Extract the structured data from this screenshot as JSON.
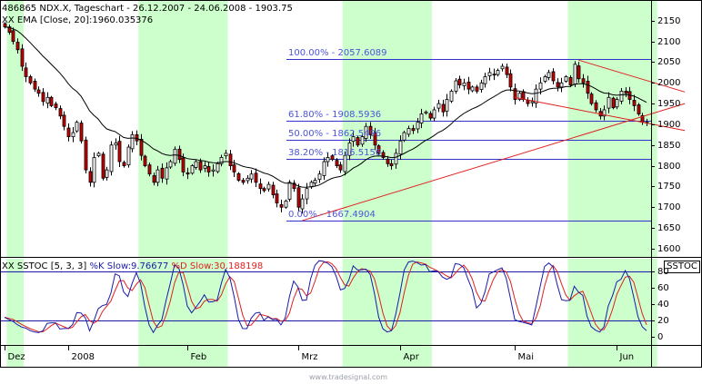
{
  "header": {
    "symbol_line": "486865  NDX.X, Tageschart - 26.12.2007 - 24.06.2008 - 1903.75",
    "ema_line": "XX EMA [Close, 20]:1960.035376"
  },
  "stoch_header": {
    "name": "XX SSTOC [5, 3, 3] ",
    "k": "%K Slow:9.76677 ",
    "d": "%D Slow:30.188198"
  },
  "stoch_tag": "SSTOC",
  "watermark": "www.tradesignal.com",
  "colors": {
    "band": "#ccffcc",
    "up_candle": "#ffffff",
    "down_candle": "#cc0000",
    "candle_outline": "#000000",
    "ema": "#000000",
    "fib": "#3333cc",
    "fib_text": "#4d55d8",
    "trend": "#e02020",
    "k_line": "#1a1aa8",
    "d_line": "#e02020",
    "stoch_band": "#1a1aa8"
  },
  "chart_data": {
    "type": "candlestick",
    "title": "486865  NDX.X, Tageschart - 26.12.2007 - 24.06.2008 - 1903.75",
    "price_axis": {
      "range": [
        1580,
        2200
      ],
      "ticks": [
        1600,
        1650,
        1700,
        1750,
        1800,
        1850,
        1900,
        1950,
        2000,
        2050,
        2100,
        2150
      ]
    },
    "stoch_axis": {
      "range": [
        -10,
        95
      ],
      "ticks": [
        0,
        20,
        40,
        60,
        80
      ]
    },
    "month_labels": [
      {
        "label": "Dez",
        "bar": 0
      },
      {
        "label": "2008",
        "bar": 15
      },
      {
        "label": "Feb",
        "bar": 43
      },
      {
        "label": "Mrz",
        "bar": 69
      },
      {
        "label": "Apr",
        "bar": 93
      },
      {
        "label": "Mai",
        "bar": 120
      },
      {
        "label": "Jun",
        "bar": 144
      }
    ],
    "shaded_months": [
      {
        "from": 1,
        "to": 4
      },
      {
        "from": 32,
        "to": 52
      },
      {
        "from": 80,
        "to": 100
      },
      {
        "from": 133,
        "to": 153
      }
    ],
    "closes": [
      2135,
      2122,
      2100,
      2080,
      2040,
      2015,
      2000,
      1985,
      1975,
      1955,
      1965,
      1945,
      1940,
      1920,
      1895,
      1870,
      1880,
      1905,
      1860,
      1790,
      1760,
      1820,
      1830,
      1770,
      1790,
      1850,
      1855,
      1810,
      1800,
      1845,
      1875,
      1860,
      1825,
      1800,
      1780,
      1760,
      1790,
      1770,
      1795,
      1810,
      1840,
      1815,
      1785,
      1780,
      1800,
      1810,
      1790,
      1800,
      1785,
      1790,
      1805,
      1820,
      1830,
      1800,
      1785,
      1765,
      1760,
      1770,
      1780,
      1760,
      1745,
      1740,
      1755,
      1730,
      1710,
      1700,
      1715,
      1760,
      1745,
      1700,
      1720,
      1745,
      1760,
      1765,
      1780,
      1810,
      1820,
      1815,
      1800,
      1790,
      1825,
      1855,
      1870,
      1850,
      1870,
      1895,
      1875,
      1850,
      1830,
      1820,
      1805,
      1800,
      1830,
      1860,
      1880,
      1890,
      1885,
      1905,
      1925,
      1930,
      1915,
      1935,
      1950,
      1930,
      1960,
      1980,
      2005,
      1995,
      2000,
      1985,
      1990,
      1980,
      2000,
      2015,
      2025,
      2020,
      2030,
      2040,
      2020,
      1990,
      1960,
      1975,
      1960,
      1950,
      1955,
      1985,
      2000,
      2015,
      2025,
      2005,
      1990,
      2000,
      2015,
      1995,
      2045,
      2010,
      2000,
      1975,
      1950,
      1935,
      1920,
      1935,
      1965,
      1940,
      1960,
      1980,
      1975,
      1960,
      1945,
      1925,
      1905,
      1903.75
    ],
    "ema_20_last": 1960.035376,
    "stoch_k_last": 9.76677,
    "stoch_d_last": 30.188198,
    "fibonacci": [
      {
        "label": "100.00% - 2057.6089",
        "value": 2057.6089
      },
      {
        "label": "61.80% - 1908.5936",
        "value": 1908.5936
      },
      {
        "label": "50.00% - 1862.5496",
        "value": 1862.5496
      },
      {
        "label": "38.20% - 1816.5156",
        "value": 1816.5156
      },
      {
        "label": "0.00% - 1667.4904",
        "value": 1667.4904
      }
    ],
    "stoch_bands": [
      20,
      80
    ],
    "trendlines": [
      {
        "from": {
          "bar": 70,
          "price": 1667.49
        },
        "to": {
          "bar": 160,
          "price": 1950
        }
      },
      {
        "from": {
          "bar": 135,
          "price": 2055
        },
        "to": {
          "bar": 160,
          "price": 1978
        }
      },
      {
        "from": {
          "bar": 120,
          "price": 1965
        },
        "to": {
          "bar": 160,
          "price": 1885
        }
      }
    ]
  }
}
